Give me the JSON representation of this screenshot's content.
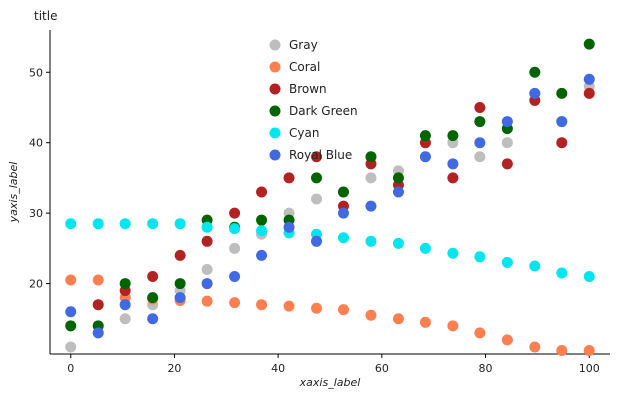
{
  "chart_data": {
    "type": "scatter",
    "title": "title",
    "xlabel": "xaxis_label",
    "ylabel": "yaxis_label",
    "xlim": [
      -4,
      104
    ],
    "ylim": [
      10,
      56
    ],
    "x_ticks": [
      0,
      20,
      40,
      60,
      80,
      100
    ],
    "y_ticks": [
      20,
      30,
      40,
      50
    ],
    "grid": false,
    "legend_position": "top-center",
    "series": [
      {
        "name": "Gray",
        "color": "#BEBEBE",
        "x": [
          0,
          5.3,
          10.5,
          15.8,
          21.1,
          26.3,
          31.6,
          36.8,
          42.1,
          47.4,
          52.6,
          57.9,
          63.2,
          68.4,
          73.7,
          78.9,
          84.2,
          89.5,
          94.7,
          100
        ],
        "y": [
          11,
          13,
          15,
          17,
          19,
          22,
          25,
          27,
          30,
          32,
          33,
          35,
          36,
          38,
          40,
          38,
          40,
          47,
          43,
          48
        ]
      },
      {
        "name": "Coral",
        "color": "#FF7F50",
        "x": [
          0,
          5.3,
          10.5,
          15.8,
          21.1,
          26.3,
          31.6,
          36.8,
          42.1,
          47.4,
          52.6,
          57.9,
          63.2,
          68.4,
          73.7,
          78.9,
          84.2,
          89.5,
          94.7,
          100
        ],
        "y": [
          20.5,
          20.5,
          18,
          17.8,
          17.6,
          17.5,
          17.3,
          17,
          16.8,
          16.5,
          16.3,
          15.5,
          15,
          14.5,
          14,
          13,
          12,
          11,
          10.5,
          10.5
        ]
      },
      {
        "name": "Brown",
        "color": "#B22222",
        "x": [
          5.3,
          10.5,
          15.8,
          21.1,
          26.3,
          31.6,
          36.8,
          42.1,
          47.4,
          52.6,
          57.9,
          63.2,
          68.4,
          73.7,
          78.9,
          84.2,
          89.5,
          94.7,
          100
        ],
        "y": [
          17,
          19,
          21,
          24,
          26,
          30,
          33,
          35,
          38,
          31,
          37,
          34,
          40,
          35,
          45,
          37,
          46,
          40,
          47
        ]
      },
      {
        "name": "Dark Green",
        "color": "#006400",
        "x": [
          0,
          5.3,
          10.5,
          15.8,
          21.1,
          26.3,
          31.6,
          36.8,
          42.1,
          47.4,
          52.6,
          57.9,
          63.2,
          68.4,
          73.7,
          78.9,
          84.2,
          89.5,
          94.7,
          100
        ],
        "y": [
          14,
          14,
          20,
          18,
          20,
          29,
          28,
          29,
          29,
          35,
          33,
          38,
          35,
          41,
          41,
          43,
          42,
          50,
          47,
          54
        ]
      },
      {
        "name": "Cyan",
        "color": "#00E5EE",
        "x": [
          0,
          5.3,
          10.5,
          15.8,
          21.1,
          26.3,
          31.6,
          36.8,
          42.1,
          47.4,
          52.6,
          57.9,
          63.2,
          68.4,
          73.7,
          78.9,
          84.2,
          89.5,
          94.7,
          100
        ],
        "y": [
          28.5,
          28.5,
          28.5,
          28.5,
          28.5,
          28,
          27.8,
          27.5,
          27.2,
          27,
          26.5,
          26,
          25.7,
          25,
          24.3,
          23.8,
          23,
          22.5,
          21.5,
          21
        ]
      },
      {
        "name": "Royal Blue",
        "color": "#4169E1",
        "x": [
          0,
          5.3,
          10.5,
          15.8,
          21.1,
          26.3,
          31.6,
          36.8,
          42.1,
          47.4,
          52.6,
          57.9,
          63.2,
          68.4,
          73.7,
          78.9,
          84.2,
          89.5,
          94.7,
          100
        ],
        "y": [
          16,
          13,
          17,
          15,
          18,
          20,
          21,
          24,
          28,
          26,
          30,
          31,
          33,
          38,
          37,
          40,
          43,
          47,
          43,
          49
        ]
      }
    ]
  }
}
